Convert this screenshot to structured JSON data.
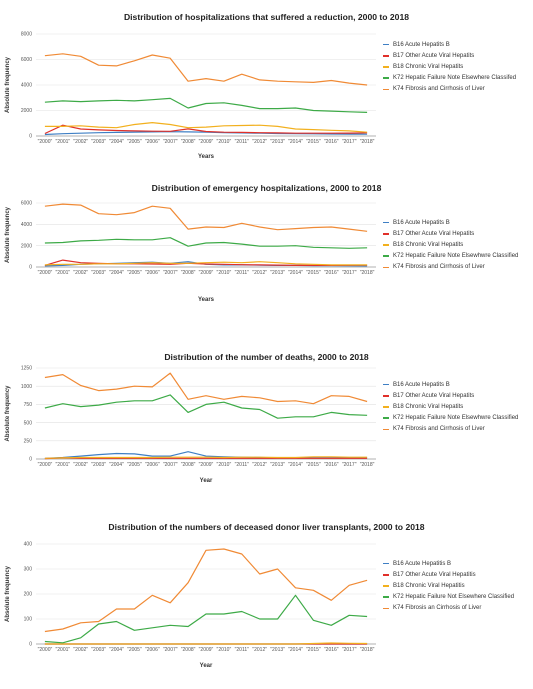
{
  "chart_data": [
    {
      "type": "line",
      "title": "Distribution of hospitalizations that suffered a reduction, 2000 to 2018",
      "xlabel": "Years",
      "ylabel": "Absolute frequency",
      "ylim": [
        0,
        8000
      ],
      "yticks": [
        "0",
        "2000",
        "4000",
        "6000",
        "8000"
      ],
      "grid": true,
      "legend_position": "right",
      "categories": [
        "\"2000\"",
        "\"2001\"",
        "\"2002\"",
        "\"2003\"",
        "\"2004\"",
        "\"2005\"",
        "\"2006\"",
        "\"2007\"",
        "\"2008\"",
        "\"2009\"",
        "\"2010\"",
        "\"2011\"",
        "\"2012\"",
        "\"2013\"",
        "\"2014\"",
        "\"2015\"",
        "\"2016\"",
        "\"2017\"",
        "\"2018\""
      ],
      "series": [
        {
          "name": "B16 Acute Hepatits B",
          "color": "#3f7fc4",
          "values": [
            120,
            180,
            220,
            260,
            280,
            300,
            320,
            340,
            320,
            300,
            260,
            240,
            220,
            200,
            180,
            170,
            160,
            150,
            140
          ]
        },
        {
          "name": "B17 Other Acute Viral Hepatits",
          "color": "#e0302a",
          "values": [
            200,
            850,
            550,
            480,
            430,
            400,
            380,
            370,
            560,
            350,
            300,
            280,
            260,
            240,
            220,
            220,
            220,
            230,
            250
          ]
        },
        {
          "name": "B18 Chronic Viral Hepatits",
          "color": "#f2b01e",
          "values": [
            750,
            750,
            800,
            700,
            650,
            900,
            1050,
            900,
            650,
            700,
            800,
            820,
            850,
            750,
            550,
            500,
            450,
            400,
            300
          ]
        },
        {
          "name": "K72 Hepatic Failure Note Elsewhere Classifed",
          "color": "#3daa47",
          "values": [
            2650,
            2750,
            2700,
            2750,
            2800,
            2750,
            2850,
            2950,
            2200,
            2550,
            2600,
            2400,
            2150,
            2150,
            2200,
            2000,
            1950,
            1900,
            1850
          ]
        },
        {
          "name": "K74 Fibrosis and Cirrhosis of Liver",
          "color": "#f08a35",
          "values": [
            6300,
            6450,
            6250,
            5550,
            5500,
            5900,
            6350,
            6100,
            4300,
            4500,
            4300,
            4850,
            4400,
            4300,
            4250,
            4200,
            4350,
            4150,
            4000
          ]
        }
      ]
    },
    {
      "type": "line",
      "title": "Distribution of emergency hospitalizations, 2000 to 2018",
      "xlabel": "Years",
      "ylabel": "Absolute frequency",
      "ylim": [
        0,
        6000
      ],
      "yticks": [
        "0",
        "2000",
        "4000",
        "6000"
      ],
      "grid": true,
      "legend_position": "right",
      "categories": [
        "\"2000\"",
        "\"2001\"",
        "\"2002\"",
        "\"2003\"",
        "\"2004\"",
        "\"2005\"",
        "\"2006\"",
        "\"2007\"",
        "\"2008\"",
        "\"2009\"",
        "\"2010\"",
        "\"2011\"",
        "\"2012\"",
        "\"2013\"",
        "\"2014\"",
        "\"2015\"",
        "\"2016\"",
        "\"2017\"",
        "\"2018\""
      ],
      "series": [
        {
          "name": "B16 Acute Hepatits B",
          "color": "#3f7fc4",
          "values": [
            100,
            150,
            250,
            300,
            350,
            400,
            450,
            350,
            500,
            250,
            200,
            200,
            180,
            150,
            150,
            130,
            120,
            110,
            100
          ]
        },
        {
          "name": "B17 Other Acute Viral Hepatits",
          "color": "#e0302a",
          "values": [
            150,
            650,
            400,
            350,
            300,
            300,
            280,
            250,
            350,
            280,
            250,
            220,
            200,
            180,
            150,
            150,
            150,
            160,
            180
          ]
        },
        {
          "name": "B18 Chronic Viral Hepatits",
          "color": "#f2b01e",
          "values": [
            200,
            250,
            250,
            300,
            300,
            350,
            400,
            350,
            350,
            400,
            450,
            400,
            500,
            400,
            300,
            250,
            200,
            200,
            200
          ]
        },
        {
          "name": "K72 Hepatic Failure Note Elsewhwre Classified",
          "color": "#3daa47",
          "values": [
            2250,
            2300,
            2450,
            2500,
            2600,
            2550,
            2550,
            2750,
            1950,
            2250,
            2300,
            2150,
            1950,
            1950,
            2000,
            1850,
            1800,
            1750,
            1800
          ]
        },
        {
          "name": "K74 Fibrosis and Cirrhosis of Liver",
          "color": "#f08a35",
          "values": [
            5700,
            5900,
            5800,
            5000,
            4900,
            5100,
            5700,
            5500,
            3550,
            3750,
            3700,
            4100,
            3750,
            3500,
            3600,
            3700,
            3750,
            3550,
            3350
          ]
        }
      ]
    },
    {
      "type": "line",
      "title": "Distribution of the number of deaths, 2000 to 2018",
      "xlabel": "Year",
      "ylabel": "Absolute frequency",
      "ylim": [
        0,
        1250
      ],
      "yticks": [
        "0",
        "250",
        "500",
        "750",
        "1000",
        "1250"
      ],
      "grid": true,
      "legend_position": "right",
      "categories": [
        "\"2000\"",
        "\"2001\"",
        "\"2002\"",
        "\"2003\"",
        "\"2004\"",
        "\"2005\"",
        "\"2006\"",
        "\"2007\"",
        "\"2008\"",
        "\"2009\"",
        "\"2010\"",
        "\"2011\"",
        "\"2012\"",
        "\"2013\"",
        "\"2014\"",
        "\"2015\"",
        "\"2016\"",
        "\"2017\"",
        "\"2018\""
      ],
      "series": [
        {
          "name": "B16 Acute Hepatits B",
          "color": "#3f7fc4",
          "values": [
            10,
            20,
            40,
            60,
            75,
            70,
            40,
            40,
            100,
            40,
            30,
            25,
            20,
            15,
            15,
            15,
            15,
            15,
            15
          ]
        },
        {
          "name": "B17 Other Acute Viral Hepatits",
          "color": "#e0302a",
          "values": [
            5,
            15,
            10,
            10,
            10,
            10,
            10,
            10,
            10,
            10,
            10,
            10,
            10,
            10,
            10,
            10,
            10,
            10,
            10
          ]
        },
        {
          "name": "B18 Chronic Viral Hepatits",
          "color": "#f2b01e",
          "values": [
            10,
            15,
            20,
            20,
            20,
            20,
            20,
            25,
            25,
            25,
            20,
            25,
            25,
            20,
            20,
            30,
            30,
            25,
            25
          ]
        },
        {
          "name": "K72 Hepatic Failure Note Elsewhwre Classified",
          "color": "#3daa47",
          "values": [
            700,
            760,
            720,
            740,
            780,
            800,
            800,
            880,
            640,
            750,
            780,
            700,
            680,
            560,
            580,
            580,
            640,
            610,
            600
          ]
        },
        {
          "name": "K74 Fibrosis and Cirrhosis of Liver",
          "color": "#f08a35",
          "values": [
            1120,
            1160,
            1010,
            940,
            960,
            1000,
            990,
            1180,
            820,
            870,
            820,
            860,
            840,
            790,
            800,
            760,
            870,
            860,
            790
          ]
        }
      ]
    },
    {
      "type": "line",
      "title": "Distribution of the numbers of deceased donor liver transplants, 2000 to 2018",
      "xlabel": "Year",
      "ylabel": "Absolute frequency",
      "ylim": [
        0,
        400
      ],
      "yticks": [
        "0",
        "100",
        "200",
        "300",
        "400"
      ],
      "grid": true,
      "legend_position": "right",
      "categories": [
        "\"2000\"",
        "\"2001\"",
        "\"2002\"",
        "\"2003\"",
        "\"2004\"",
        "\"2005\"",
        "\"2006\"",
        "\"2007\"",
        "\"2008\"",
        "\"2009\"",
        "\"2010\"",
        "\"2011\"",
        "\"2012\"",
        "\"2013\"",
        "\"2014\"",
        "\"2015\"",
        "\"2016\"",
        "\"2017\"",
        "\"2018\""
      ],
      "series": [
        {
          "name": "B16 Acute Hepatitis B",
          "color": "#3f7fc4",
          "values": [
            0,
            0,
            0,
            0,
            0,
            0,
            0,
            0,
            0,
            0,
            0,
            0,
            0,
            0,
            0,
            0,
            0,
            0,
            0
          ]
        },
        {
          "name": "B17 Other Acute Viral Hepatitis",
          "color": "#e0302a",
          "values": [
            0,
            0,
            0,
            0,
            0,
            0,
            0,
            0,
            0,
            0,
            0,
            0,
            0,
            0,
            0,
            0,
            0,
            0,
            0
          ]
        },
        {
          "name": "B18 Chronic Viral Hepatitis",
          "color": "#f2b01e",
          "values": [
            0,
            0,
            0,
            0,
            0,
            0,
            0,
            0,
            0,
            0,
            0,
            0,
            0,
            0,
            0,
            2,
            4,
            3,
            2
          ]
        },
        {
          "name": "K72 Hepatic Failure Not Elsewhere Classified",
          "color": "#3daa47",
          "values": [
            10,
            5,
            25,
            80,
            90,
            55,
            65,
            75,
            70,
            120,
            120,
            130,
            100,
            100,
            195,
            95,
            75,
            115,
            110
          ]
        },
        {
          "name": "K74 Fibrosis an Cirrhosis of Liver",
          "color": "#f08a35",
          "values": [
            50,
            60,
            85,
            90,
            140,
            140,
            195,
            165,
            245,
            375,
            380,
            360,
            280,
            300,
            225,
            215,
            175,
            235,
            255
          ]
        }
      ]
    }
  ]
}
